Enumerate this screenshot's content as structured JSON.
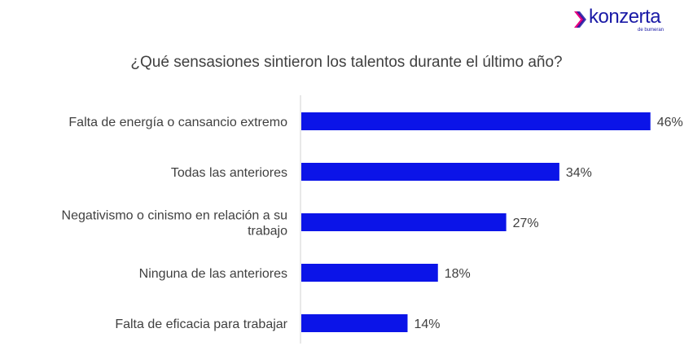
{
  "brand": {
    "name": "konzerta",
    "tagline": "de bumeran",
    "color": "#1a1aa6",
    "accent": "#e6007e"
  },
  "chart_data": {
    "type": "bar",
    "orientation": "horizontal",
    "title": "¿Qué sensasiones sintieron los talentos durante el último año?",
    "categories": [
      "Falta de energía o cansancio extremo",
      "Todas las anteriores",
      "Negativismo o cinismo en relación a su trabajo",
      "Ninguna de las anteriores",
      "Falta de eficacia para trabajar"
    ],
    "category_lines": [
      [
        "Falta de energía o cansancio extremo"
      ],
      [
        "Todas las anteriores"
      ],
      [
        "Negativismo o cinismo en relación a su",
        "trabajo"
      ],
      [
        "Ninguna de las anteriores"
      ],
      [
        "Falta de eficacia para trabajar"
      ]
    ],
    "values": [
      46,
      34,
      27,
      18,
      14
    ],
    "value_labels": [
      "46%",
      "34%",
      "27%",
      "18%",
      "14%"
    ],
    "xlim": [
      0,
      50
    ],
    "bar_color": "#0b14e8",
    "grid": false,
    "legend": "none"
  }
}
